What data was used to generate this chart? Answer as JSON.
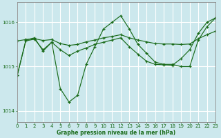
{
  "xlabel": "Graphe pression niveau de la mer (hPa)",
  "background_color": "#cce8ed",
  "grid_color": "#ffffff",
  "line_color": "#1a6b1a",
  "xlim": [
    0,
    23
  ],
  "ylim": [
    1013.75,
    1016.45
  ],
  "yticks": [
    1014,
    1015,
    1016
  ],
  "xticks": [
    0,
    1,
    2,
    3,
    4,
    5,
    6,
    7,
    8,
    9,
    10,
    11,
    12,
    13,
    14,
    15,
    16,
    17,
    18,
    19,
    20,
    21,
    22,
    23
  ],
  "series_jagged_x": [
    0,
    1,
    2,
    3,
    4,
    5,
    6,
    7,
    8,
    9,
    10,
    11,
    12,
    13,
    14,
    15,
    16,
    17,
    18,
    19,
    20,
    21,
    22,
    23
  ],
  "series_jagged_y": [
    1014.8,
    1015.6,
    1015.65,
    1015.35,
    1015.55,
    1014.5,
    1014.2,
    1014.35,
    1015.05,
    1015.45,
    1015.85,
    1016.0,
    1016.15,
    1015.85,
    1015.5,
    1015.3,
    1015.1,
    1015.05,
    1015.05,
    1015.0,
    1015.0,
    1015.6,
    1015.9,
    1016.1
  ],
  "series_trend_x": [
    0,
    1,
    2,
    3,
    4,
    5,
    6,
    7,
    8,
    9,
    10,
    11,
    12,
    13,
    14,
    15,
    16,
    17,
    18,
    19,
    20,
    21,
    22,
    23
  ],
  "series_trend_y": [
    1015.58,
    1015.61,
    1015.63,
    1015.59,
    1015.61,
    1015.52,
    1015.48,
    1015.5,
    1015.56,
    1015.6,
    1015.65,
    1015.68,
    1015.72,
    1015.65,
    1015.6,
    1015.56,
    1015.52,
    1015.51,
    1015.51,
    1015.5,
    1015.51,
    1015.63,
    1015.72,
    1015.8
  ],
  "series_smooth_x": [
    0,
    1,
    2,
    3,
    4,
    5,
    6,
    7,
    8,
    9,
    10,
    11,
    12,
    13,
    14,
    15,
    16,
    17,
    18,
    19,
    20,
    21,
    22,
    23
  ],
  "series_smooth_y": [
    1014.8,
    1015.58,
    1015.62,
    1015.38,
    1015.55,
    1015.38,
    1015.25,
    1015.35,
    1015.42,
    1015.5,
    1015.55,
    1015.6,
    1015.65,
    1015.45,
    1015.28,
    1015.12,
    1015.05,
    1015.04,
    1015.03,
    1015.18,
    1015.38,
    1015.75,
    1016.0,
    1016.1
  ]
}
